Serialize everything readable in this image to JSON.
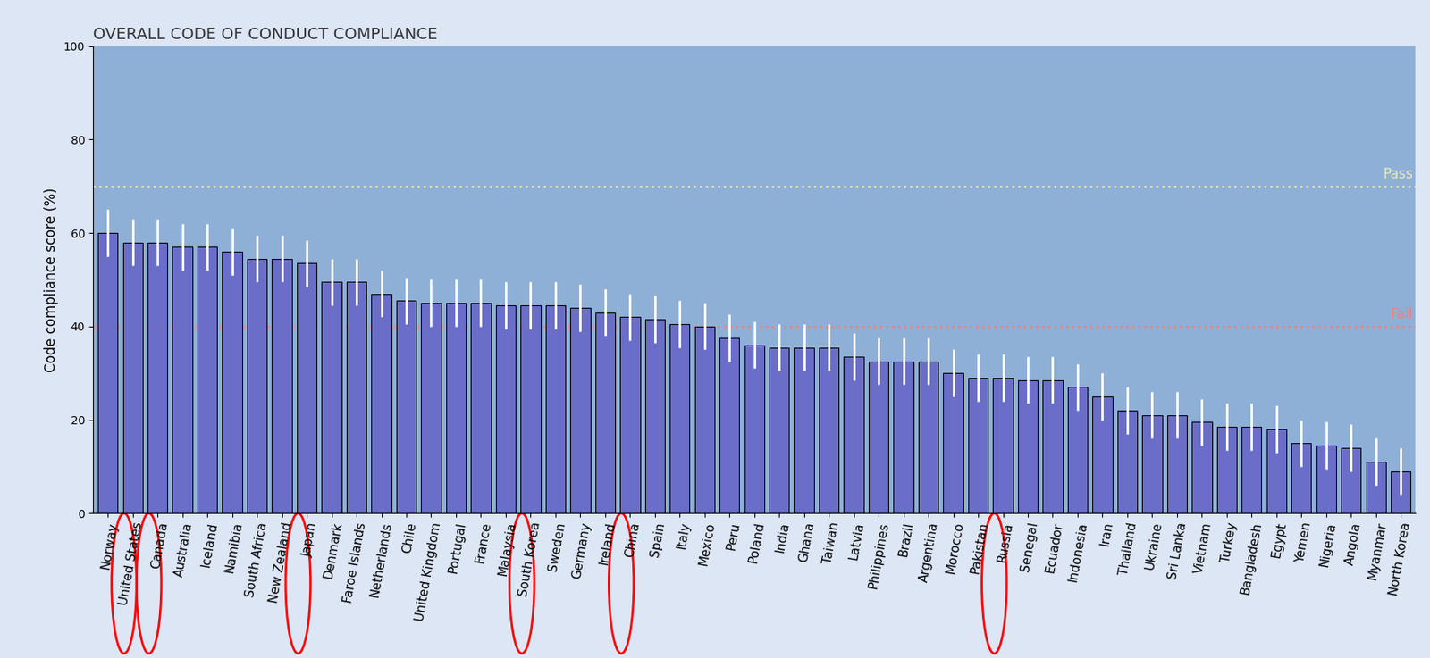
{
  "chart_data": {
    "type": "bar",
    "title": "OVERALL CODE OF CONDUCT COMPLIANCE",
    "y_label": "Code compliance score (%)",
    "categories": [
      "Norway",
      "United States",
      "Canada",
      "Australia",
      "Iceland",
      "Namibia",
      "South Africa",
      "New Zealand",
      "Japan",
      "Denmark",
      "Faroe Islands",
      "Netherlands",
      "Chile",
      "United Kingdom",
      "Portugal",
      "France",
      "Malaysia",
      "South Korea",
      "Sweden",
      "Germany",
      "Ireland",
      "China",
      "Spain",
      "Italy",
      "Mexico",
      "Peru",
      "Poland",
      "India",
      "Ghana",
      "Taiwan",
      "Latvia",
      "Philippines",
      "Brazil",
      "Argentina",
      "Morocco",
      "Pakistan",
      "Russia",
      "Senegal",
      "Ecuador",
      "Indonesia",
      "Iran",
      "Thailand",
      "Ukraine",
      "Sri Lanka",
      "Vietnam",
      "Turkey",
      "Bangladesh",
      "Egypt",
      "Yemen",
      "Nigeria",
      "Angola",
      "Myanmar",
      "North Korea"
    ],
    "values": [
      60,
      58,
      58,
      57,
      57,
      56,
      54.5,
      54.5,
      53.5,
      49.5,
      49.5,
      47,
      45.5,
      45,
      45,
      45,
      44.5,
      44.5,
      44.5,
      44,
      43,
      42,
      41.5,
      40.5,
      40,
      37.5,
      36,
      35.5,
      35.5,
      35.5,
      33.5,
      32.5,
      32.5,
      32.5,
      30,
      29,
      29,
      28.5,
      28.5,
      27,
      25,
      22,
      21,
      21,
      19.5,
      18.5,
      18.5,
      18,
      15,
      14.5,
      14,
      11,
      9
    ],
    "error": [
      5,
      5,
      5,
      5,
      5,
      5,
      5,
      5,
      5,
      5,
      5,
      5,
      5,
      5,
      5,
      5,
      5,
      5,
      5,
      5,
      5,
      5,
      5,
      5,
      5,
      5,
      5,
      5,
      5,
      5,
      5,
      5,
      5,
      5,
      5,
      5,
      5,
      5,
      5,
      5,
      5,
      5,
      5,
      5,
      5,
      5,
      5,
      5,
      5,
      5,
      5,
      5,
      5
    ],
    "color": "#6a6ec8",
    "reference_lines": [
      {
        "value": 70,
        "label": "Pass",
        "color": "#e8e8c0"
      },
      {
        "value": 40,
        "label": "Fail",
        "color": "#f08080"
      }
    ],
    "highlighted": [
      "United States",
      "Canada",
      "Japan",
      "South Korea",
      "China",
      "Russia"
    ],
    "ylim": [
      0,
      100
    ],
    "yticks": [
      0,
      20,
      40,
      60,
      80,
      100
    ],
    "grid": false
  }
}
